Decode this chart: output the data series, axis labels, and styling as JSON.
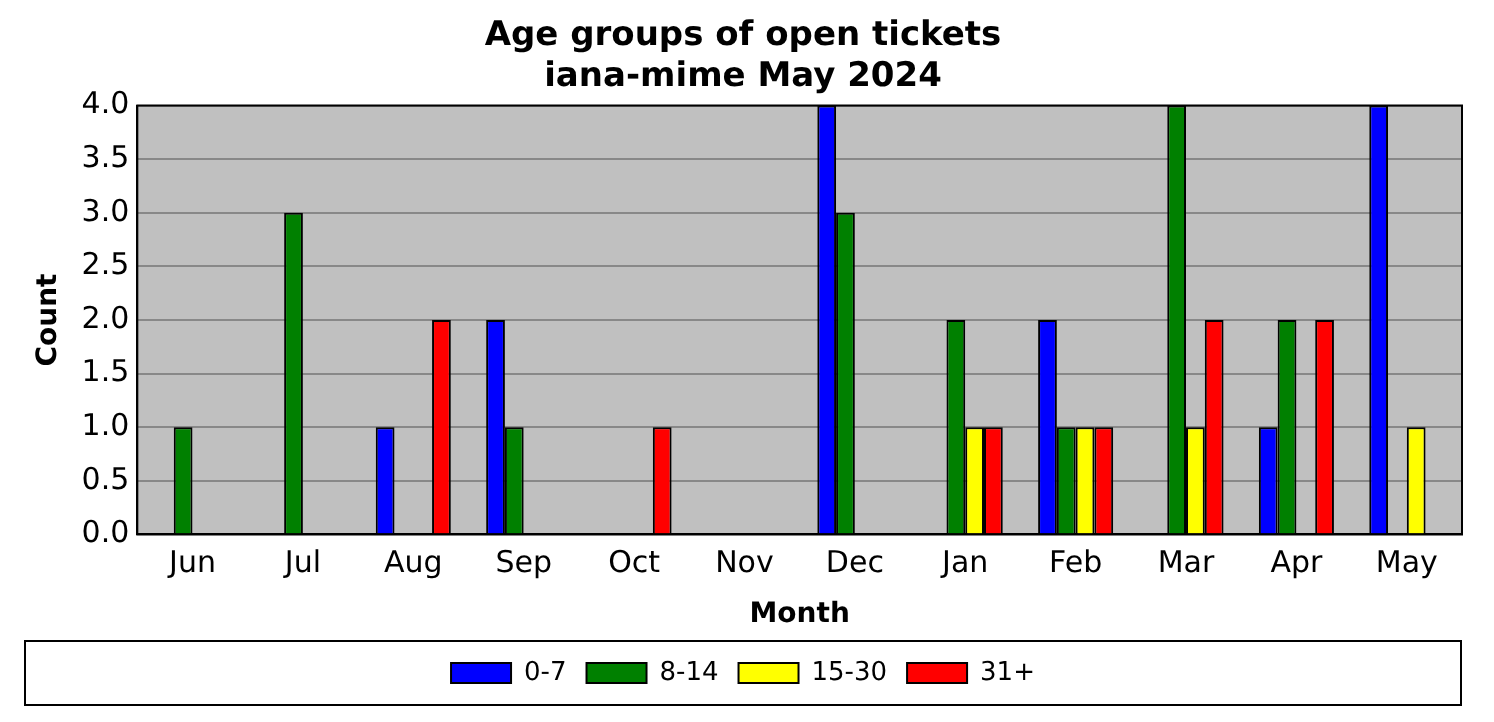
{
  "chart_data": {
    "type": "bar",
    "title": "Age groups of open tickets\niana-mime May 2024",
    "xlabel": "Month",
    "ylabel": "Count",
    "categories": [
      "Jun",
      "Jul",
      "Aug",
      "Sep",
      "Oct",
      "Nov",
      "Dec",
      "Jan",
      "Feb",
      "Mar",
      "Apr",
      "May"
    ],
    "series": [
      {
        "name": "0-7",
        "color": "#0000ff",
        "values": [
          0,
          0,
          1,
          2,
          0,
          0,
          4,
          0,
          2,
          0,
          1,
          4
        ]
      },
      {
        "name": "8-14",
        "color": "#008000",
        "values": [
          1,
          3,
          0,
          1,
          0,
          0,
          3,
          2,
          1,
          4,
          2,
          0
        ]
      },
      {
        "name": "15-30",
        "color": "#ffff00",
        "values": [
          0,
          0,
          0,
          0,
          0,
          0,
          0,
          1,
          1,
          1,
          0,
          1
        ]
      },
      {
        "name": "31+",
        "color": "#ff0000",
        "values": [
          0,
          0,
          2,
          0,
          1,
          0,
          0,
          1,
          1,
          2,
          2,
          0
        ]
      }
    ],
    "ylim": [
      0,
      4
    ],
    "yticks": [
      {
        "value": 0,
        "label": "0.0"
      },
      {
        "value": 0.5,
        "label": "0.5"
      },
      {
        "value": 1,
        "label": "1.0"
      },
      {
        "value": 1.5,
        "label": "1.5"
      },
      {
        "value": 2,
        "label": "2.0"
      },
      {
        "value": 2.5,
        "label": "2.5"
      },
      {
        "value": 3,
        "label": "3.0"
      },
      {
        "value": 3.5,
        "label": "3.5"
      },
      {
        "value": 4,
        "label": "4.0"
      }
    ],
    "grid": "y",
    "legend": "bottom"
  }
}
